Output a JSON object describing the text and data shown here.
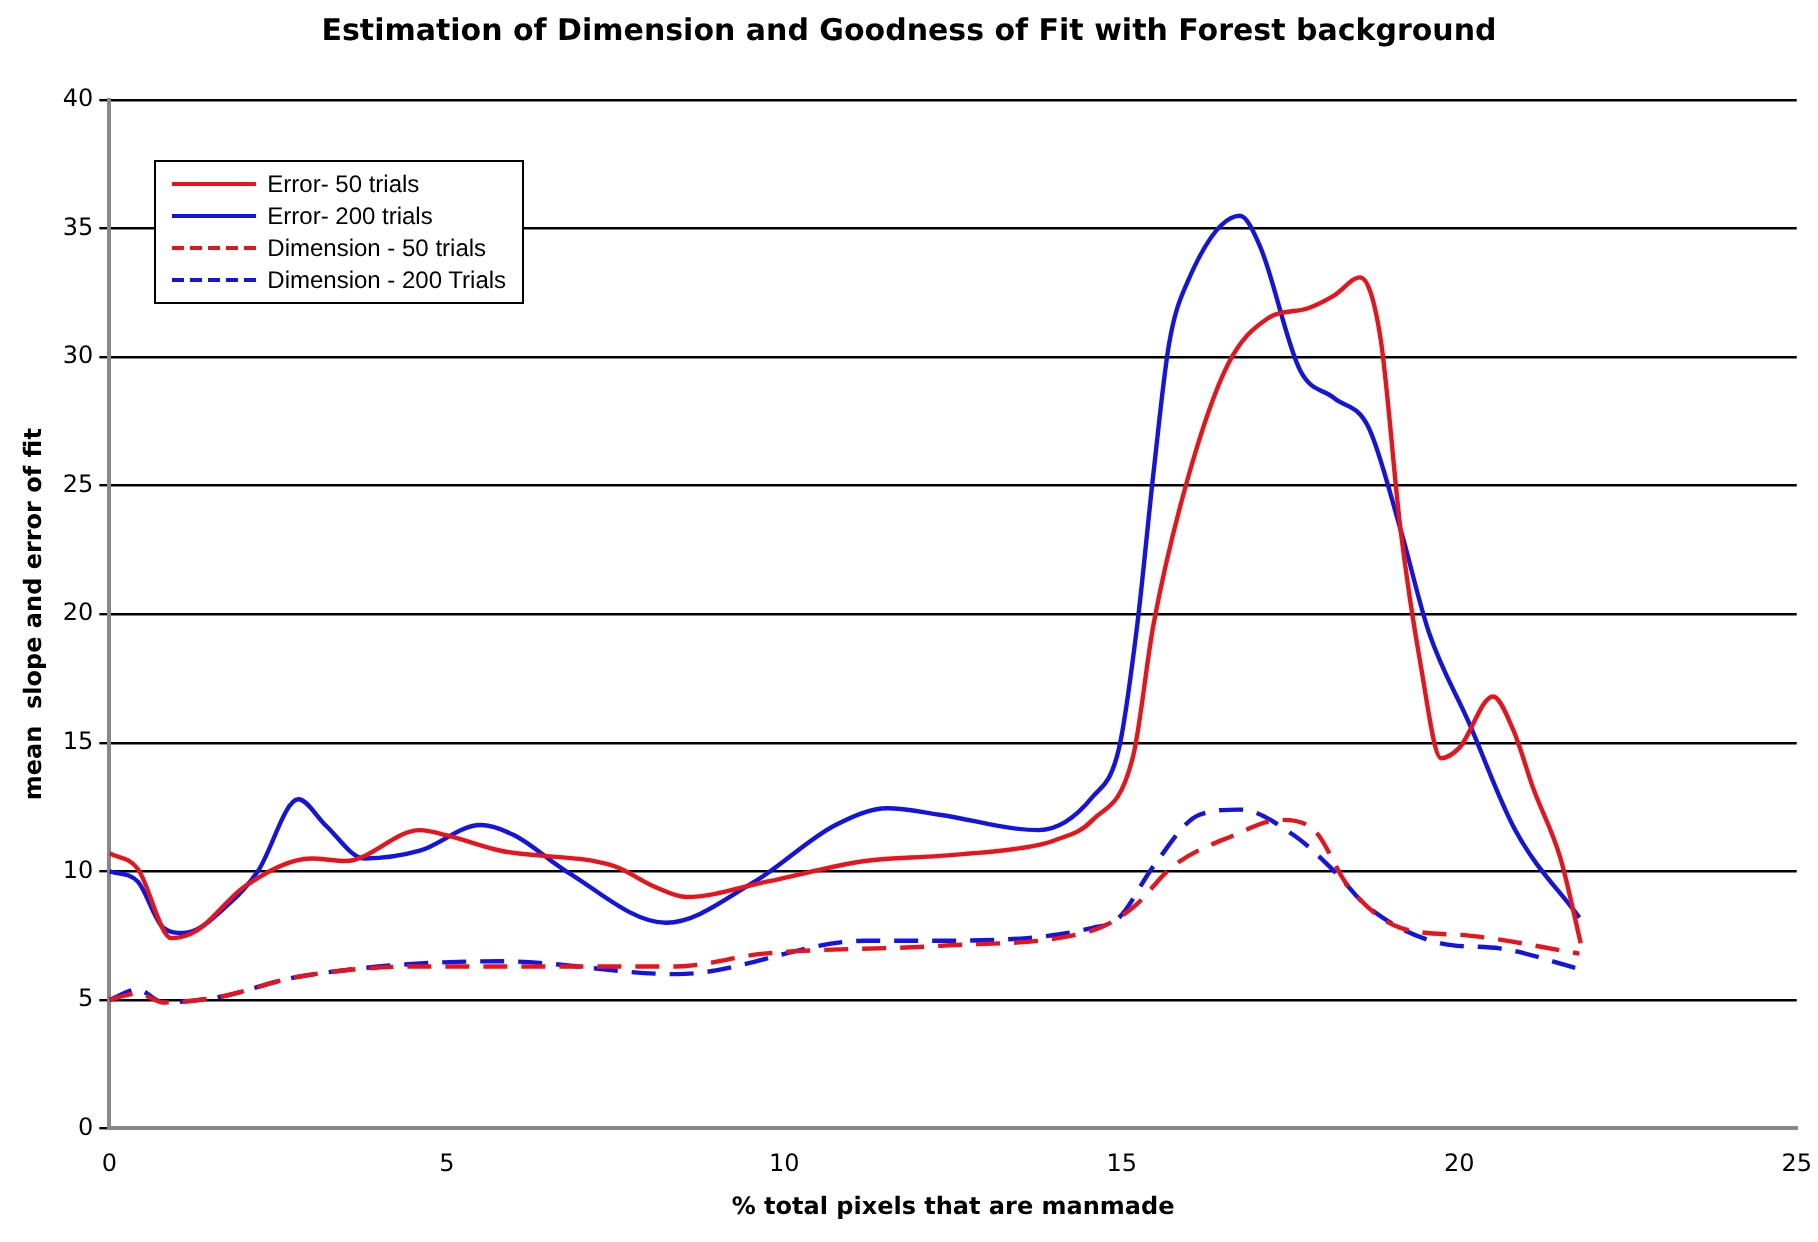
{
  "chart_data": {
    "type": "line",
    "title": "Estimation of Dimension and Goodness of Fit with Forest background",
    "xlabel": "% total pixels that are manmade",
    "ylabel": "mean  slope and error of fit",
    "xlim": [
      0,
      25
    ],
    "xticks": [
      0,
      5,
      10,
      15,
      20,
      25
    ],
    "ylim": [
      0,
      40
    ],
    "yticks": [
      0,
      5,
      10,
      15,
      20,
      25,
      30,
      35,
      40
    ],
    "grid": "y",
    "legend": "top left",
    "marker": "none",
    "series": [
      {
        "name": "Error- 50 trials",
        "color": "#e8141c",
        "line_style": "solid",
        "x": [
          0,
          0.42,
          0.92,
          1.3,
          2.0,
          3.0,
          3.5,
          4.6,
          5.0,
          5.8,
          7.48,
          8.08,
          8.55,
          9.74,
          11.2,
          12.3,
          13.5,
          14.0,
          14.57,
          15.17,
          15.47,
          15.97,
          16.57,
          17.16,
          17.76,
          18.15,
          18.53,
          18.83,
          19.13,
          19.43,
          19.73,
          20.0,
          20.5,
          20.8,
          21.1,
          21.5,
          21.8
        ],
        "values": [
          10.7,
          10.1,
          7.4,
          7.7,
          9.4,
          10.5,
          10.4,
          11.6,
          11.4,
          10.8,
          10.2,
          9.4,
          9.0,
          9.6,
          10.4,
          10.6,
          10.9,
          11.2,
          12.0,
          14.5,
          19.6,
          25.2,
          29.7,
          31.5,
          31.9,
          32.4,
          33.1,
          30.8,
          23.3,
          18.0,
          14.4,
          14.8,
          16.8,
          15.5,
          13.2,
          10.5,
          7.2
        ]
      },
      {
        "name": "Error- 200 trials",
        "color": "#1414e0",
        "line_style": "solid",
        "x": [
          0,
          0.42,
          0.8,
          1.1,
          1.8,
          2.2,
          2.8,
          3.2,
          3.78,
          4.6,
          5.5,
          6.0,
          6.77,
          8.25,
          9.56,
          10.76,
          11.53,
          12.3,
          13.77,
          14.57,
          14.96,
          15.23,
          15.47,
          15.7,
          15.97,
          16.75,
          17.05,
          17.64,
          18.15,
          18.65,
          19.13,
          19.55,
          20.14,
          20.83,
          21.78
        ],
        "values": [
          10.0,
          9.6,
          7.8,
          7.6,
          8.8,
          10.0,
          12.8,
          11.8,
          10.5,
          10.8,
          11.8,
          11.4,
          10.0,
          8.0,
          9.6,
          11.8,
          12.45,
          12.2,
          11.6,
          12.9,
          14.8,
          19.6,
          25.5,
          30.5,
          32.9,
          35.5,
          34.3,
          29.5,
          28.4,
          27.3,
          23.3,
          19.3,
          15.8,
          11.6,
          8.2
        ]
      },
      {
        "name": "Dimension - 50 trials",
        "color": "#e8141c",
        "line_style": "dashed",
        "x": [
          0,
          0.42,
          0.8,
          1.6,
          2.8,
          4.6,
          5.8,
          8.4,
          9.7,
          12.3,
          14.57,
          15.17,
          15.76,
          16.66,
          17.35,
          17.85,
          18.36,
          19.13,
          20.14,
          21.78
        ],
        "values": [
          5.0,
          5.25,
          4.9,
          5.1,
          5.9,
          6.3,
          6.3,
          6.3,
          6.8,
          7.1,
          7.7,
          8.6,
          10.2,
          11.4,
          12.0,
          11.6,
          9.4,
          7.8,
          7.5,
          6.8
        ]
      },
      {
        "name": "Dimension - 200 Trials",
        "color": "#1414e0",
        "line_style": "dashed",
        "x": [
          0,
          0.42,
          0.8,
          1.6,
          2.8,
          5.8,
          8.4,
          11.2,
          12.3,
          14.57,
          14.96,
          15.47,
          16.15,
          16.75,
          17.55,
          18.15,
          18.65,
          19.73,
          20.6,
          21.78
        ],
        "values": [
          5.0,
          5.4,
          4.9,
          5.1,
          5.9,
          6.5,
          6.0,
          7.3,
          7.3,
          7.8,
          8.2,
          10.2,
          12.2,
          12.4,
          11.4,
          10.0,
          8.6,
          7.2,
          7.0,
          6.2
        ]
      }
    ]
  }
}
